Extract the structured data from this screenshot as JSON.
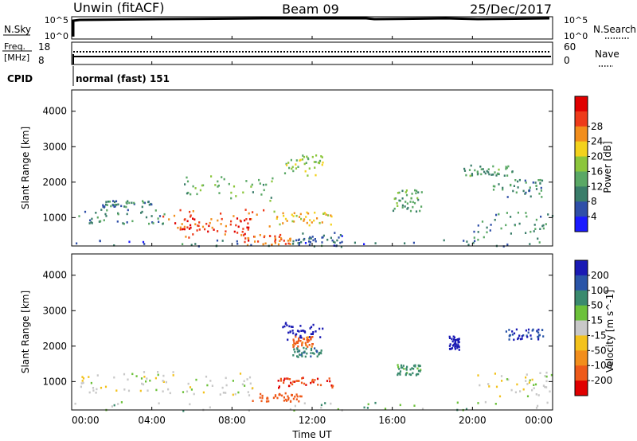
{
  "header": {
    "station": "Unwin (fitACF)",
    "beam": "Beam 09",
    "date": "25/Dec/2017"
  },
  "status_panels": {
    "nsky_label": "N.Sky",
    "nsky_ticks": [
      "10^5",
      "10^0"
    ],
    "nsearch_label": "N.Search",
    "nsearch_ticks": [
      "10^5",
      "10^0"
    ],
    "freq_label_line1": "Freq.",
    "freq_label_line2": "[MHz]",
    "freq_ticks": [
      "18",
      "8"
    ],
    "nave_label": "Nave",
    "nave_ticks": [
      "60",
      "0"
    ],
    "cpid_label": "CPID",
    "cpid_value": "normal (fast) 151"
  },
  "chart_data": [
    {
      "type": "heatmap",
      "name": "power",
      "ylabel": "Slant Range [km]",
      "yticks": [
        "1000",
        "2000",
        "3000",
        "4000"
      ],
      "ylim": [
        200,
        4600
      ],
      "colorbar_label": "Power [dB]",
      "colorbar_ticks": [
        "4",
        "8",
        "12",
        "16",
        "20",
        "24",
        "28"
      ],
      "colorbar_colors": [
        "#1a1aff",
        "#2f4fa8",
        "#3a7d6a",
        "#5aa865",
        "#8cc63c",
        "#f3d21c",
        "#f28e1c",
        "#ee3b1a",
        "#e00000"
      ],
      "patches": [
        {
          "t": [
            0.2,
            4.6
          ],
          "r": [
            850,
            1250
          ],
          "v": 9
        },
        {
          "t": [
            1.5,
            4.0
          ],
          "r": [
            1300,
            1500
          ],
          "v": 8
        },
        {
          "t": [
            4.5,
            10.0
          ],
          "r": [
            450,
            1250
          ],
          "v": 25
        },
        {
          "t": [
            5.0,
            9.0
          ],
          "r": [
            600,
            1100
          ],
          "v": 28
        },
        {
          "t": [
            8.5,
            11.0
          ],
          "r": [
            250,
            550
          ],
          "v": 25
        },
        {
          "t": [
            10.0,
            13.0
          ],
          "r": [
            800,
            1200
          ],
          "v": 20
        },
        {
          "t": [
            5.5,
            10.0
          ],
          "r": [
            1500,
            2200
          ],
          "v": 13
        },
        {
          "t": [
            10.5,
            12.5
          ],
          "r": [
            2200,
            2800
          ],
          "v": 15
        },
        {
          "t": [
            11.0,
            13.5
          ],
          "r": [
            200,
            600
          ],
          "v": 7
        },
        {
          "t": [
            16.0,
            17.5
          ],
          "r": [
            1200,
            1800
          ],
          "v": 12
        },
        {
          "t": [
            19.5,
            22.0
          ],
          "r": [
            2200,
            2500
          ],
          "v": 11
        },
        {
          "t": [
            20.0,
            24.0
          ],
          "r": [
            400,
            1200
          ],
          "v": 10
        },
        {
          "t": [
            21.0,
            23.5
          ],
          "r": [
            1600,
            2100
          ],
          "v": 9
        },
        {
          "t": [
            0.0,
            24.0
          ],
          "r": [
            200,
            400
          ],
          "v": 7
        }
      ]
    },
    {
      "type": "heatmap",
      "name": "velocity",
      "ylabel": "Slant Range [km]",
      "yticks": [
        "1000",
        "2000",
        "3000",
        "4000"
      ],
      "ylim": [
        200,
        4600
      ],
      "colorbar_label": "Velocity [m s^-1]",
      "colorbar_ticks": [
        "200",
        "100",
        "50",
        "15",
        "-15",
        "-50",
        "-100",
        "-200"
      ],
      "colorbar_colors": [
        "#1a1ab4",
        "#2a55a8",
        "#3a8a6e",
        "#6cc13a",
        "#c8c8c8",
        "#f3c21c",
        "#f28e1c",
        "#ee5a1a",
        "#e00000"
      ],
      "patches": [
        {
          "t": [
            0.2,
            4.6
          ],
          "r": [
            700,
            1300
          ],
          "v": 0
        },
        {
          "t": [
            4.5,
            10.0
          ],
          "r": [
            600,
            1300
          ],
          "v": 0
        },
        {
          "t": [
            10.0,
            13.0
          ],
          "r": [
            850,
            1150
          ],
          "v": -150
        },
        {
          "t": [
            9.0,
            11.5
          ],
          "r": [
            450,
            700
          ],
          "v": -120
        },
        {
          "t": [
            10.5,
            12.5
          ],
          "r": [
            2200,
            2700
          ],
          "v": 180
        },
        {
          "t": [
            11.0,
            12.5
          ],
          "r": [
            1700,
            2000
          ],
          "v": 60
        },
        {
          "t": [
            11.0,
            12.0
          ],
          "r": [
            2000,
            2300
          ],
          "v": -90
        },
        {
          "t": [
            16.2,
            17.4
          ],
          "r": [
            1200,
            1500
          ],
          "v": 40
        },
        {
          "t": [
            18.8,
            19.3
          ],
          "r": [
            1900,
            2300
          ],
          "v": 200
        },
        {
          "t": [
            20.0,
            24.0
          ],
          "r": [
            600,
            1300
          ],
          "v": 0
        },
        {
          "t": [
            21.5,
            23.5
          ],
          "r": [
            2200,
            2500
          ],
          "v": 150
        },
        {
          "t": [
            0.0,
            24.0
          ],
          "r": [
            200,
            450
          ],
          "v": 20
        }
      ]
    }
  ],
  "x_axis": {
    "label": "Time UT",
    "ticks": [
      "00:00",
      "04:00",
      "08:00",
      "12:00",
      "16:00",
      "20:00",
      "00:00"
    ]
  }
}
